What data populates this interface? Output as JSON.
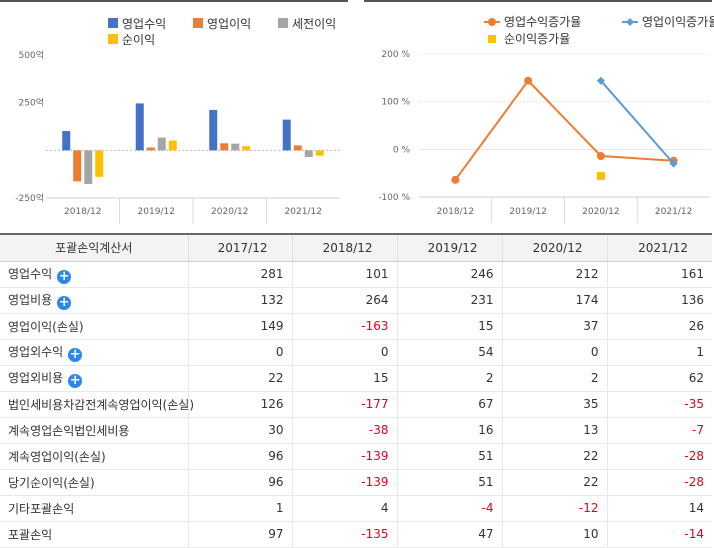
{
  "chart_data": [
    {
      "type": "bar",
      "categories": [
        "2018/12",
        "2019/12",
        "2020/12",
        "2021/12"
      ],
      "series": [
        {
          "name": "영업수익",
          "color": "#4472c4",
          "values": [
            101,
            246,
            212,
            161
          ]
        },
        {
          "name": "영업이익",
          "color": "#ed7d31",
          "values": [
            -163,
            15,
            37,
            26
          ]
        },
        {
          "name": "세전이익",
          "color": "#a5a5a5",
          "values": [
            -177,
            67,
            35,
            -35
          ]
        },
        {
          "name": "순이익",
          "color": "#ffc000",
          "values": [
            -139,
            51,
            22,
            -28
          ]
        }
      ],
      "ylim": [
        -250,
        500
      ],
      "yticks": [
        500,
        250,
        -250
      ],
      "ytick_labels": [
        "500억",
        "250억",
        "-250억"
      ]
    },
    {
      "type": "line",
      "categories": [
        "2018/12",
        "2019/12",
        "2020/12",
        "2021/12"
      ],
      "series": [
        {
          "name": "영업수익증가율",
          "color": "#ed7d31",
          "marker": "circle",
          "values": [
            -64,
            144,
            -14,
            -24
          ]
        },
        {
          "name": "영업이익증가율",
          "color": "#5b9bd5",
          "marker": "diamond",
          "values": [
            null,
            null,
            144,
            -30
          ]
        },
        {
          "name": "순이익증가율",
          "color": "#ffc000",
          "marker": "square",
          "values": [
            null,
            null,
            -56,
            null
          ]
        }
      ],
      "ylim": [
        -100,
        200
      ],
      "yticks": [
        200,
        100,
        0,
        -100
      ],
      "ytick_labels": [
        "200 %",
        "100 %",
        "0 %",
        "-100 %"
      ]
    }
  ],
  "table": {
    "header": {
      "label": "포괄손익계산서",
      "years": [
        "2017/12",
        "2018/12",
        "2019/12",
        "2020/12",
        "2021/12"
      ]
    },
    "rows": [
      {
        "label": "영업수익",
        "expandable": true,
        "values": [
          "281",
          "101",
          "246",
          "212",
          "161"
        ]
      },
      {
        "label": "영업비용",
        "expandable": true,
        "values": [
          "132",
          "264",
          "231",
          "174",
          "136"
        ]
      },
      {
        "label": "영업이익(손실)",
        "expandable": false,
        "values": [
          "149",
          "-163",
          "15",
          "37",
          "26"
        ]
      },
      {
        "label": "영업외수익",
        "expandable": true,
        "values": [
          "0",
          "0",
          "54",
          "0",
          "1"
        ]
      },
      {
        "label": "영업외비용",
        "expandable": true,
        "values": [
          "22",
          "15",
          "2",
          "2",
          "62"
        ]
      },
      {
        "label": "법인세비용차감전계속영업이익(손실)",
        "expandable": false,
        "values": [
          "126",
          "-177",
          "67",
          "35",
          "-35"
        ]
      },
      {
        "label": "계속영업손익법인세비용",
        "expandable": false,
        "values": [
          "30",
          "-38",
          "16",
          "13",
          "-7"
        ]
      },
      {
        "label": "계속영업이익(손실)",
        "expandable": false,
        "values": [
          "96",
          "-139",
          "51",
          "22",
          "-28"
        ]
      },
      {
        "label": "당기순이익(손실)",
        "expandable": false,
        "values": [
          "96",
          "-139",
          "51",
          "22",
          "-28"
        ]
      },
      {
        "label": "기타포괄손익",
        "expandable": false,
        "values": [
          "1",
          "4",
          "-4",
          "-12",
          "14"
        ]
      },
      {
        "label": "포괄손익",
        "expandable": false,
        "values": [
          "97",
          "-135",
          "47",
          "10",
          "-14"
        ]
      }
    ]
  }
}
